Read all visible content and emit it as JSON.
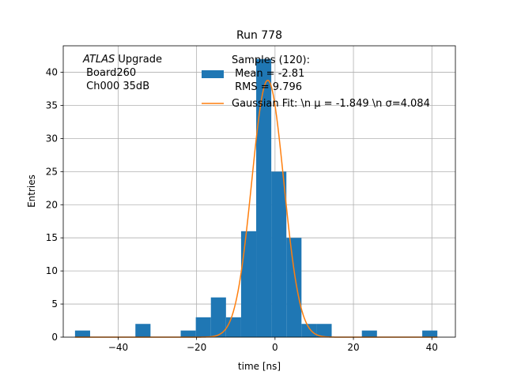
{
  "chart_data": {
    "type": "bar",
    "title": "Run 778",
    "xlabel": "time [ns]",
    "ylabel": "Entries",
    "xlim": [
      -54,
      46
    ],
    "ylim": [
      0,
      44
    ],
    "grid": true,
    "x_ticks": [
      -40,
      -20,
      0,
      20,
      40
    ],
    "y_ticks": [
      0,
      5,
      10,
      15,
      20,
      25,
      30,
      35,
      40
    ],
    "annotation": {
      "lines": [
        {
          "italic": "ATLAS",
          "text": " Upgrade"
        },
        {
          "italic": "",
          "text": " Board260"
        },
        {
          "italic": "",
          "text": " Ch000 35dB"
        }
      ]
    },
    "legend": {
      "placement": "top-right",
      "entries": [
        {
          "label_lines": [
            "Samples (120):",
            " Mean = -2.81",
            " RMS = 9.796"
          ],
          "color": "#1f77b4",
          "kind": "patch"
        },
        {
          "label_lines": [
            "Gaussian Fit: \\n μ = -1.849 \\n σ=4.084"
          ],
          "color": "#ff7f0e",
          "kind": "line"
        }
      ]
    },
    "series": [
      {
        "name": "Samples (120)",
        "type": "histogram",
        "color": "#1f77b4",
        "bin_width": 3.85,
        "bin_start": -51.0,
        "counts": [
          1,
          0,
          0,
          0,
          2,
          0,
          0,
          1,
          3,
          6,
          3,
          16,
          42,
          25,
          15,
          2,
          2,
          0,
          0,
          1,
          0,
          0,
          0,
          1
        ]
      },
      {
        "name": "Gaussian Fit",
        "type": "line",
        "color": "#ff7f0e",
        "mu": -1.849,
        "sigma": 4.084,
        "amplitude": 38.8,
        "x_range": [
          -51.0,
          41.4
        ]
      }
    ]
  }
}
